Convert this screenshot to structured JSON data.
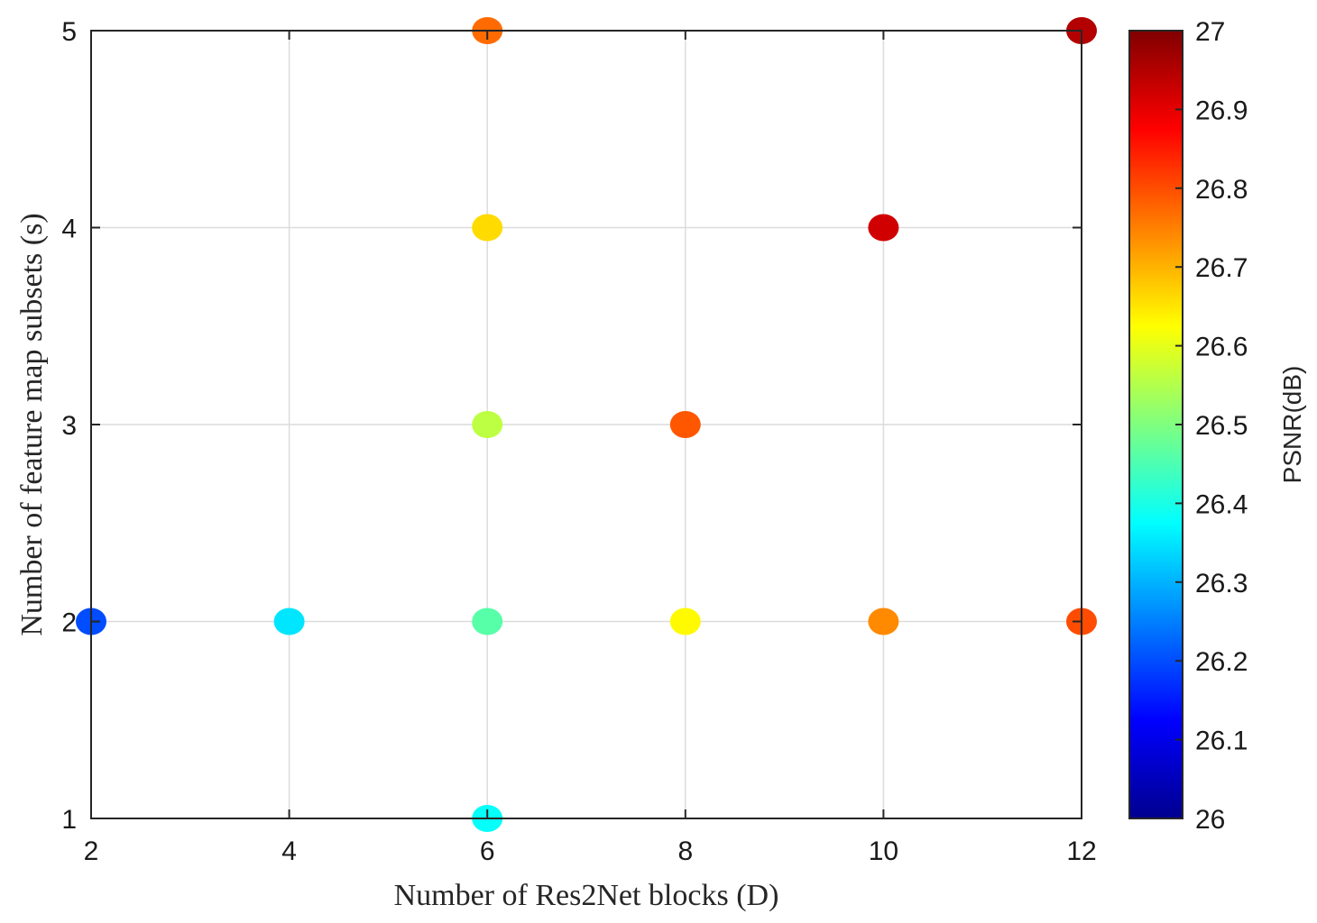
{
  "chart_data": {
    "type": "scatter",
    "title": "",
    "xlabel": "Number of Res2Net blocks (D)",
    "ylabel": "Number of feature map subsets (s)",
    "xlim": [
      2,
      12
    ],
    "ylim": [
      1,
      5
    ],
    "xticks": [
      "2",
      "4",
      "6",
      "8",
      "10",
      "12"
    ],
    "yticks": [
      "1",
      "2",
      "3",
      "4",
      "5"
    ],
    "grid": true,
    "colormap": "jet",
    "colorbar": {
      "label": "PSNR(dB)",
      "range": [
        26,
        27
      ],
      "ticks": [
        "26",
        "26.1",
        "26.2",
        "26.3",
        "26.4",
        "26.5",
        "26.6",
        "26.7",
        "26.8",
        "26.9",
        "27"
      ]
    },
    "points": [
      {
        "x": 2,
        "y": 2,
        "psnr": 26.2
      },
      {
        "x": 4,
        "y": 2,
        "psnr": 26.35
      },
      {
        "x": 6,
        "y": 1,
        "psnr": 26.38
      },
      {
        "x": 6,
        "y": 2,
        "psnr": 26.46
      },
      {
        "x": 6,
        "y": 3,
        "psnr": 26.56
      },
      {
        "x": 6,
        "y": 4,
        "psnr": 26.66
      },
      {
        "x": 6,
        "y": 5,
        "psnr": 26.77
      },
      {
        "x": 8,
        "y": 2,
        "psnr": 26.63
      },
      {
        "x": 8,
        "y": 3,
        "psnr": 26.79
      },
      {
        "x": 10,
        "y": 2,
        "psnr": 26.74
      },
      {
        "x": 10,
        "y": 4,
        "psnr": 26.92
      },
      {
        "x": 12,
        "y": 2,
        "psnr": 26.8
      },
      {
        "x": 12,
        "y": 5,
        "psnr": 26.95
      }
    ]
  }
}
